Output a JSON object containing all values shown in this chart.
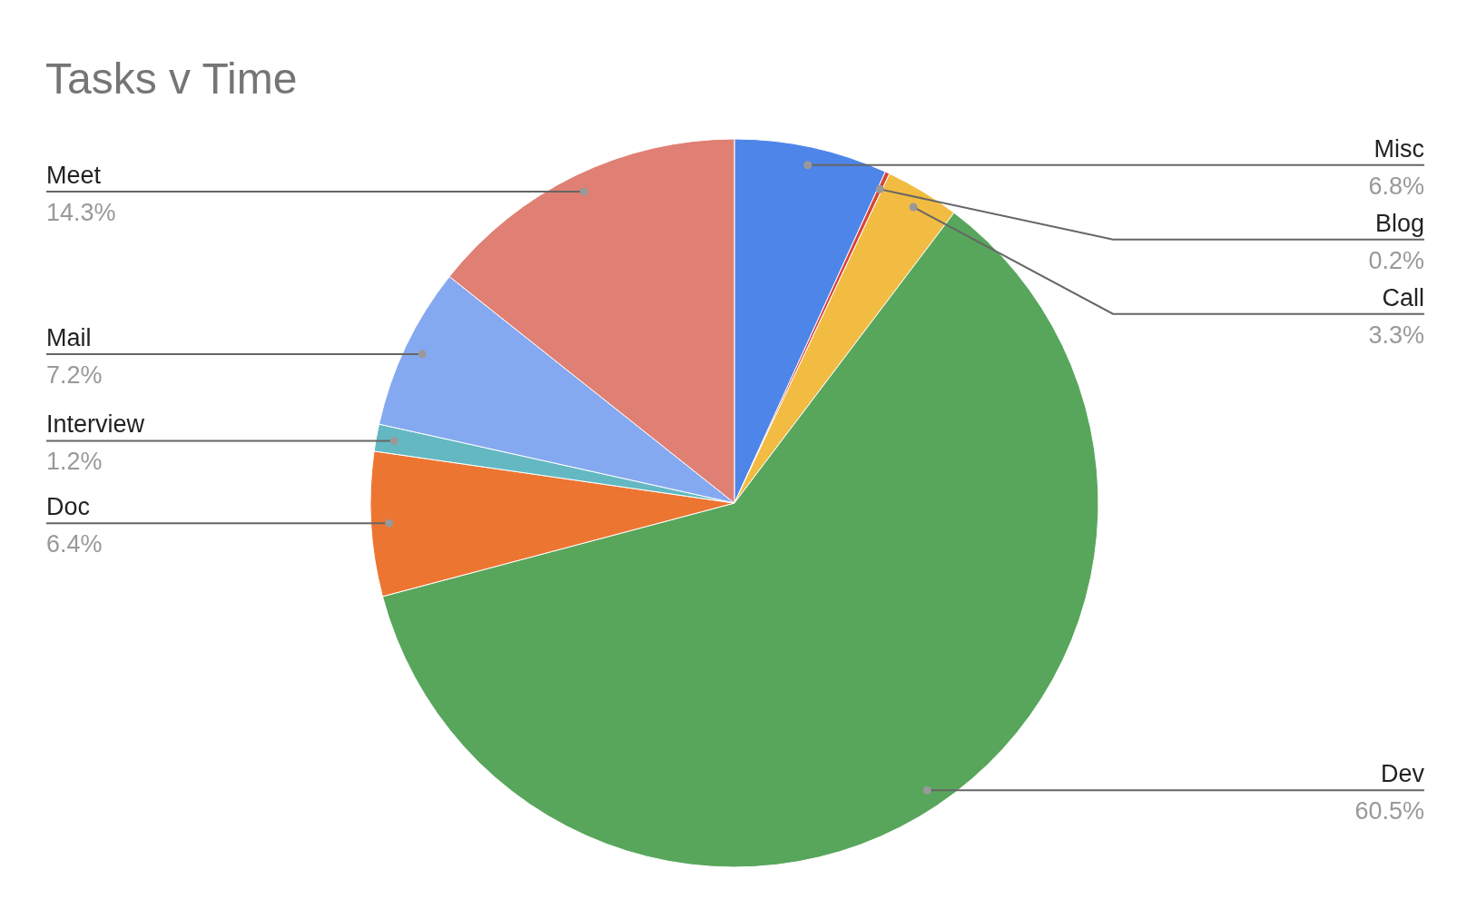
{
  "chart_data": {
    "type": "pie",
    "title": "Tasks v Time",
    "categories": [
      "Misc",
      "Blog",
      "Call",
      "Dev",
      "Doc",
      "Interview",
      "Mail",
      "Meet"
    ],
    "values": [
      6.8,
      0.2,
      3.3,
      60.5,
      6.4,
      1.2,
      7.2,
      14.3
    ],
    "value_labels": [
      "6.8%",
      "0.2%",
      "3.3%",
      "60.5%",
      "6.4%",
      "1.2%",
      "7.2%",
      "14.3%"
    ],
    "colors": [
      "#4e85e8",
      "#d9453b",
      "#f2bb42",
      "#58a65c",
      "#ed7532",
      "#63b8c2",
      "#85a9f0",
      "#e07f73"
    ]
  }
}
